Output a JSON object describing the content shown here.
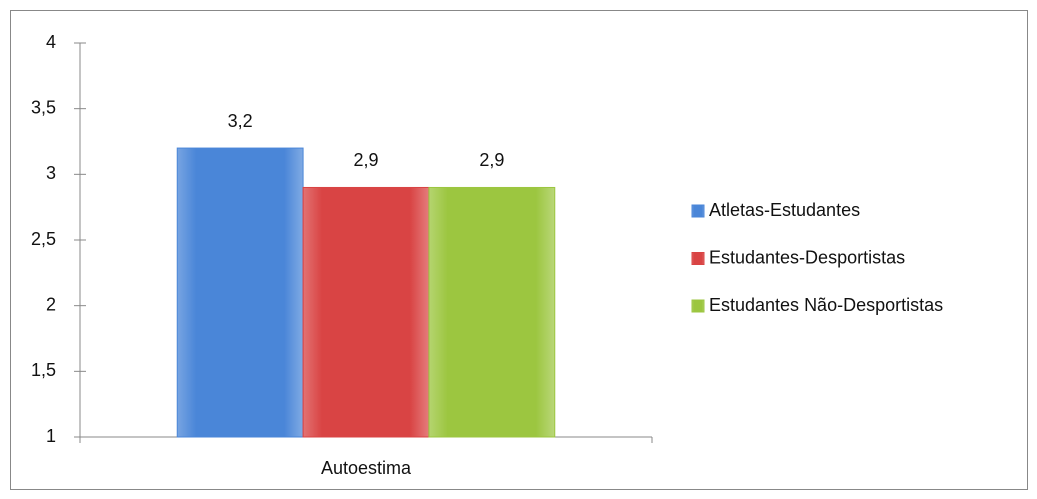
{
  "chart_data": {
    "type": "bar",
    "categories": [
      "Autoestima"
    ],
    "series": [
      {
        "name": "Atletas-Estudantes",
        "color": "#4a86d8",
        "values": [
          3.2
        ],
        "value_labels": [
          "3,2"
        ]
      },
      {
        "name": "Estudantes-Desportistas",
        "color": "#d94444",
        "values": [
          2.9
        ],
        "value_labels": [
          "2,9"
        ]
      },
      {
        "name": "Estudantes Não-Desportistas",
        "color": "#9cc640",
        "values": [
          2.9
        ],
        "value_labels": [
          "2,9"
        ]
      }
    ],
    "ylim": [
      1,
      4
    ],
    "yticks": [
      1,
      {
        "value": 1.5,
        "label": "1,5"
      },
      2,
      {
        "value": 2.5,
        "label": "2,5"
      },
      3,
      {
        "value": 3.5,
        "label": "3,5"
      },
      4
    ],
    "grid": false,
    "legend": "right"
  }
}
